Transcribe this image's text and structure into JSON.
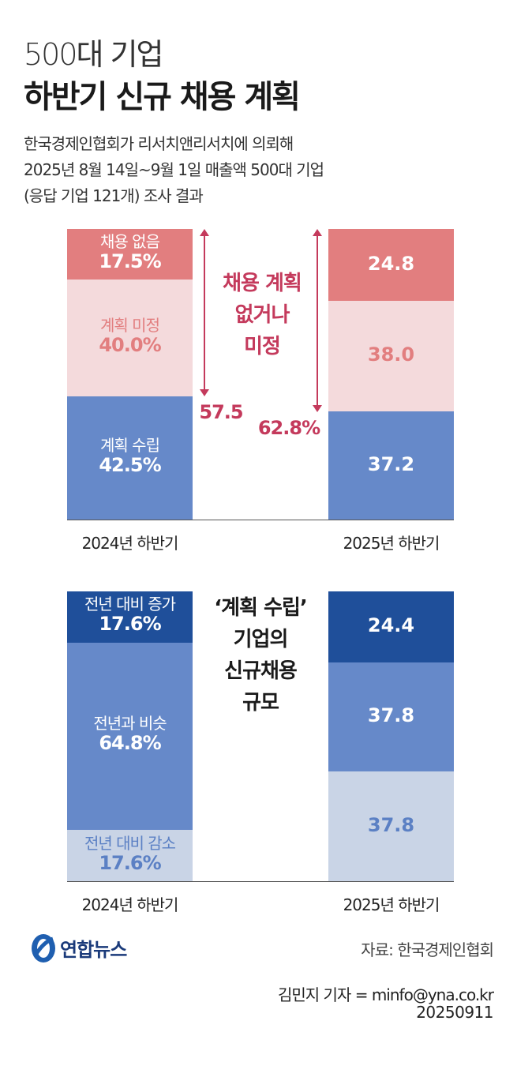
{
  "header": {
    "subtitle": "500대 기업",
    "title": "하반기 신규 채용 계획",
    "description": [
      "한국경제인협회가 리서치앤리서치에 의뢰해",
      "2025년 8월 14일~9월 1일 매출액 500대 기업",
      "(응답 기업 121개) 조사 결과"
    ]
  },
  "colors": {
    "no_hiring": "#e27e7f",
    "undecided": "#f4dadc",
    "planned": "#6689c9",
    "increase": "#1f4f9a",
    "similar": "#6689c9",
    "decrease": "#c9d4e6",
    "annotation": "#c43a5c"
  },
  "chart_data": [
    {
      "type": "bar",
      "stacked": true,
      "categories": [
        "2024년 하반기",
        "2025년 하반기"
      ],
      "series": [
        {
          "name": "채용 없음",
          "values": [
            17.5,
            24.8
          ],
          "labels": [
            "17.5%",
            "24.8"
          ]
        },
        {
          "name": "계획 미정",
          "values": [
            40.0,
            38.0
          ],
          "labels": [
            "40.0%",
            "38.0"
          ]
        },
        {
          "name": "계획 수립",
          "values": [
            42.5,
            37.2
          ],
          "labels": [
            "42.5%",
            "37.2"
          ]
        }
      ],
      "annotation": {
        "text": [
          "채용 계획",
          "없거나",
          "미정"
        ],
        "values": [
          "57.5",
          "62.8%"
        ]
      }
    },
    {
      "type": "bar",
      "stacked": true,
      "categories": [
        "2024년 하반기",
        "2025년 하반기"
      ],
      "series": [
        {
          "name": "전년 대비 증가",
          "values": [
            17.6,
            24.4
          ],
          "labels": [
            "17.6%",
            "24.4"
          ]
        },
        {
          "name": "전년과 비슷",
          "values": [
            64.8,
            37.8
          ],
          "labels": [
            "64.8%",
            "37.8"
          ]
        },
        {
          "name": "전년 대비 감소",
          "values": [
            17.6,
            37.8
          ],
          "labels": [
            "17.6%",
            "37.8"
          ]
        }
      ],
      "annotation": {
        "text": [
          "‘계획 수립’",
          "기업의",
          "신규채용",
          "규모"
        ]
      }
    }
  ],
  "footer": {
    "logo_text": "연합뉴스",
    "source": "자료: 한국경제인협회",
    "credit": "김민지 기자 = minfo@yna.co.kr",
    "date": "20250911"
  }
}
